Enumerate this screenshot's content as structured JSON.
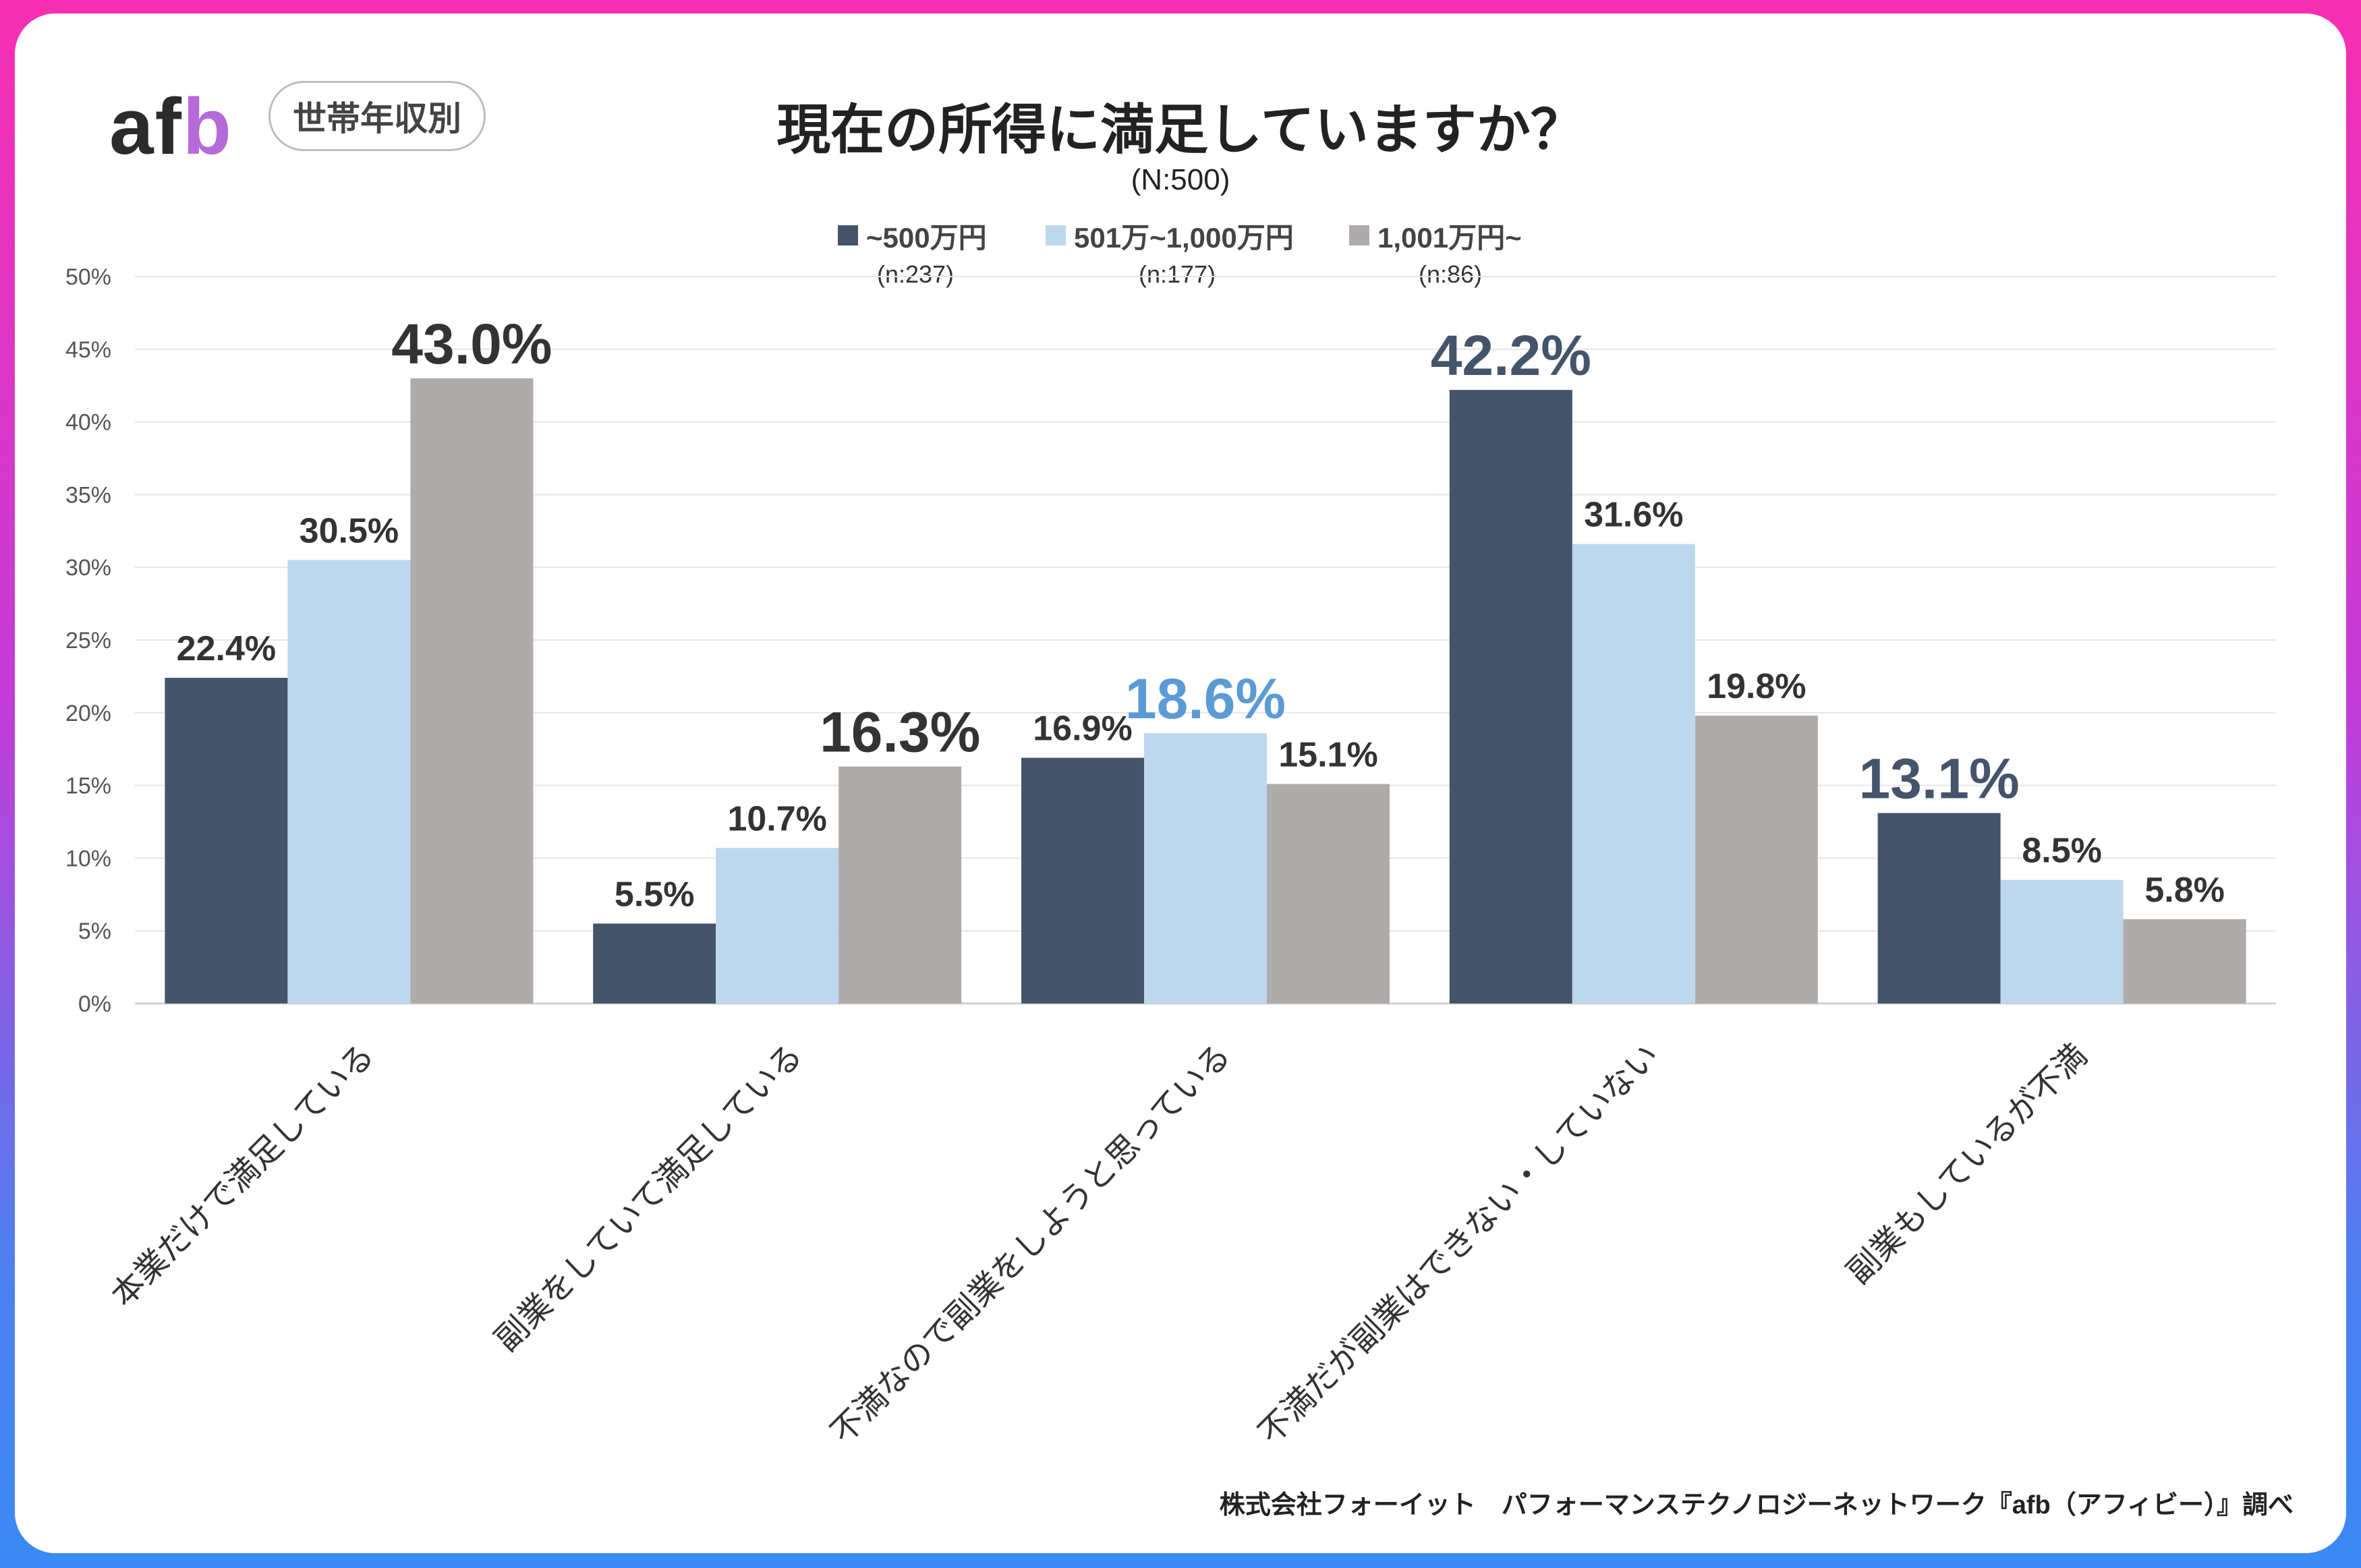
{
  "brand": {
    "logo_left": "af",
    "logo_right": "b",
    "filter_label": "世帯年収別"
  },
  "title": "現在の所得に満足していますか？",
  "subtitle": "(N:500)",
  "legend": [
    {
      "label": "~500万円",
      "n": "(n:237)",
      "color": "#44546a"
    },
    {
      "label": "501万~1,000万円",
      "n": "(n:177)",
      "color": "#bdd7ee"
    },
    {
      "label": "1,001万円~",
      "n": "(n:86)",
      "color": "#afabab"
    }
  ],
  "source": "株式会社フォーイット　パフォーマンステクノロジーネットワーク『afb（アフィビー）』調べ",
  "chart_data": {
    "type": "bar",
    "title": "現在の所得に満足していますか？",
    "categories": [
      "本業だけで満足している",
      "副業をしていて満足している",
      "不満なので副業をしようと思っている",
      "不満だが副業はできない・していない",
      "副業もしているが不満"
    ],
    "series": [
      {
        "name": "~500万円",
        "values": [
          22.4,
          5.5,
          16.9,
          42.2,
          13.1
        ],
        "labels": [
          "22.4%",
          "5.5%",
          "16.9%",
          "42.2%",
          "13.1%"
        ],
        "color": "#44546a"
      },
      {
        "name": "501万~1,000万円",
        "values": [
          30.5,
          10.7,
          18.6,
          31.6,
          8.5
        ],
        "labels": [
          "30.5%",
          "10.7%",
          "18.6%",
          "31.6%",
          "8.5%"
        ],
        "color": "#bdd7ee"
      },
      {
        "name": "1,001万円~",
        "values": [
          43.0,
          16.3,
          15.1,
          19.8,
          5.8
        ],
        "labels": [
          "43.0%",
          "16.3%",
          "15.1%",
          "19.8%",
          "5.8%"
        ],
        "color": "#afabab"
      }
    ],
    "highlights": [
      {
        "series": 2,
        "category": 0,
        "color": "#333333"
      },
      {
        "series": 2,
        "category": 1,
        "color": "#333333"
      },
      {
        "series": 1,
        "category": 2,
        "color": "#5b9bd5"
      },
      {
        "series": 0,
        "category": 3,
        "color": "#44546a"
      },
      {
        "series": 0,
        "category": 4,
        "color": "#44546a"
      }
    ],
    "y_ticks": [
      "0%",
      "5%",
      "10%",
      "15%",
      "20%",
      "25%",
      "30%",
      "35%",
      "40%",
      "45%",
      "50%"
    ],
    "ylim": [
      0,
      50
    ],
    "grid": true,
    "legend_position": "top"
  }
}
